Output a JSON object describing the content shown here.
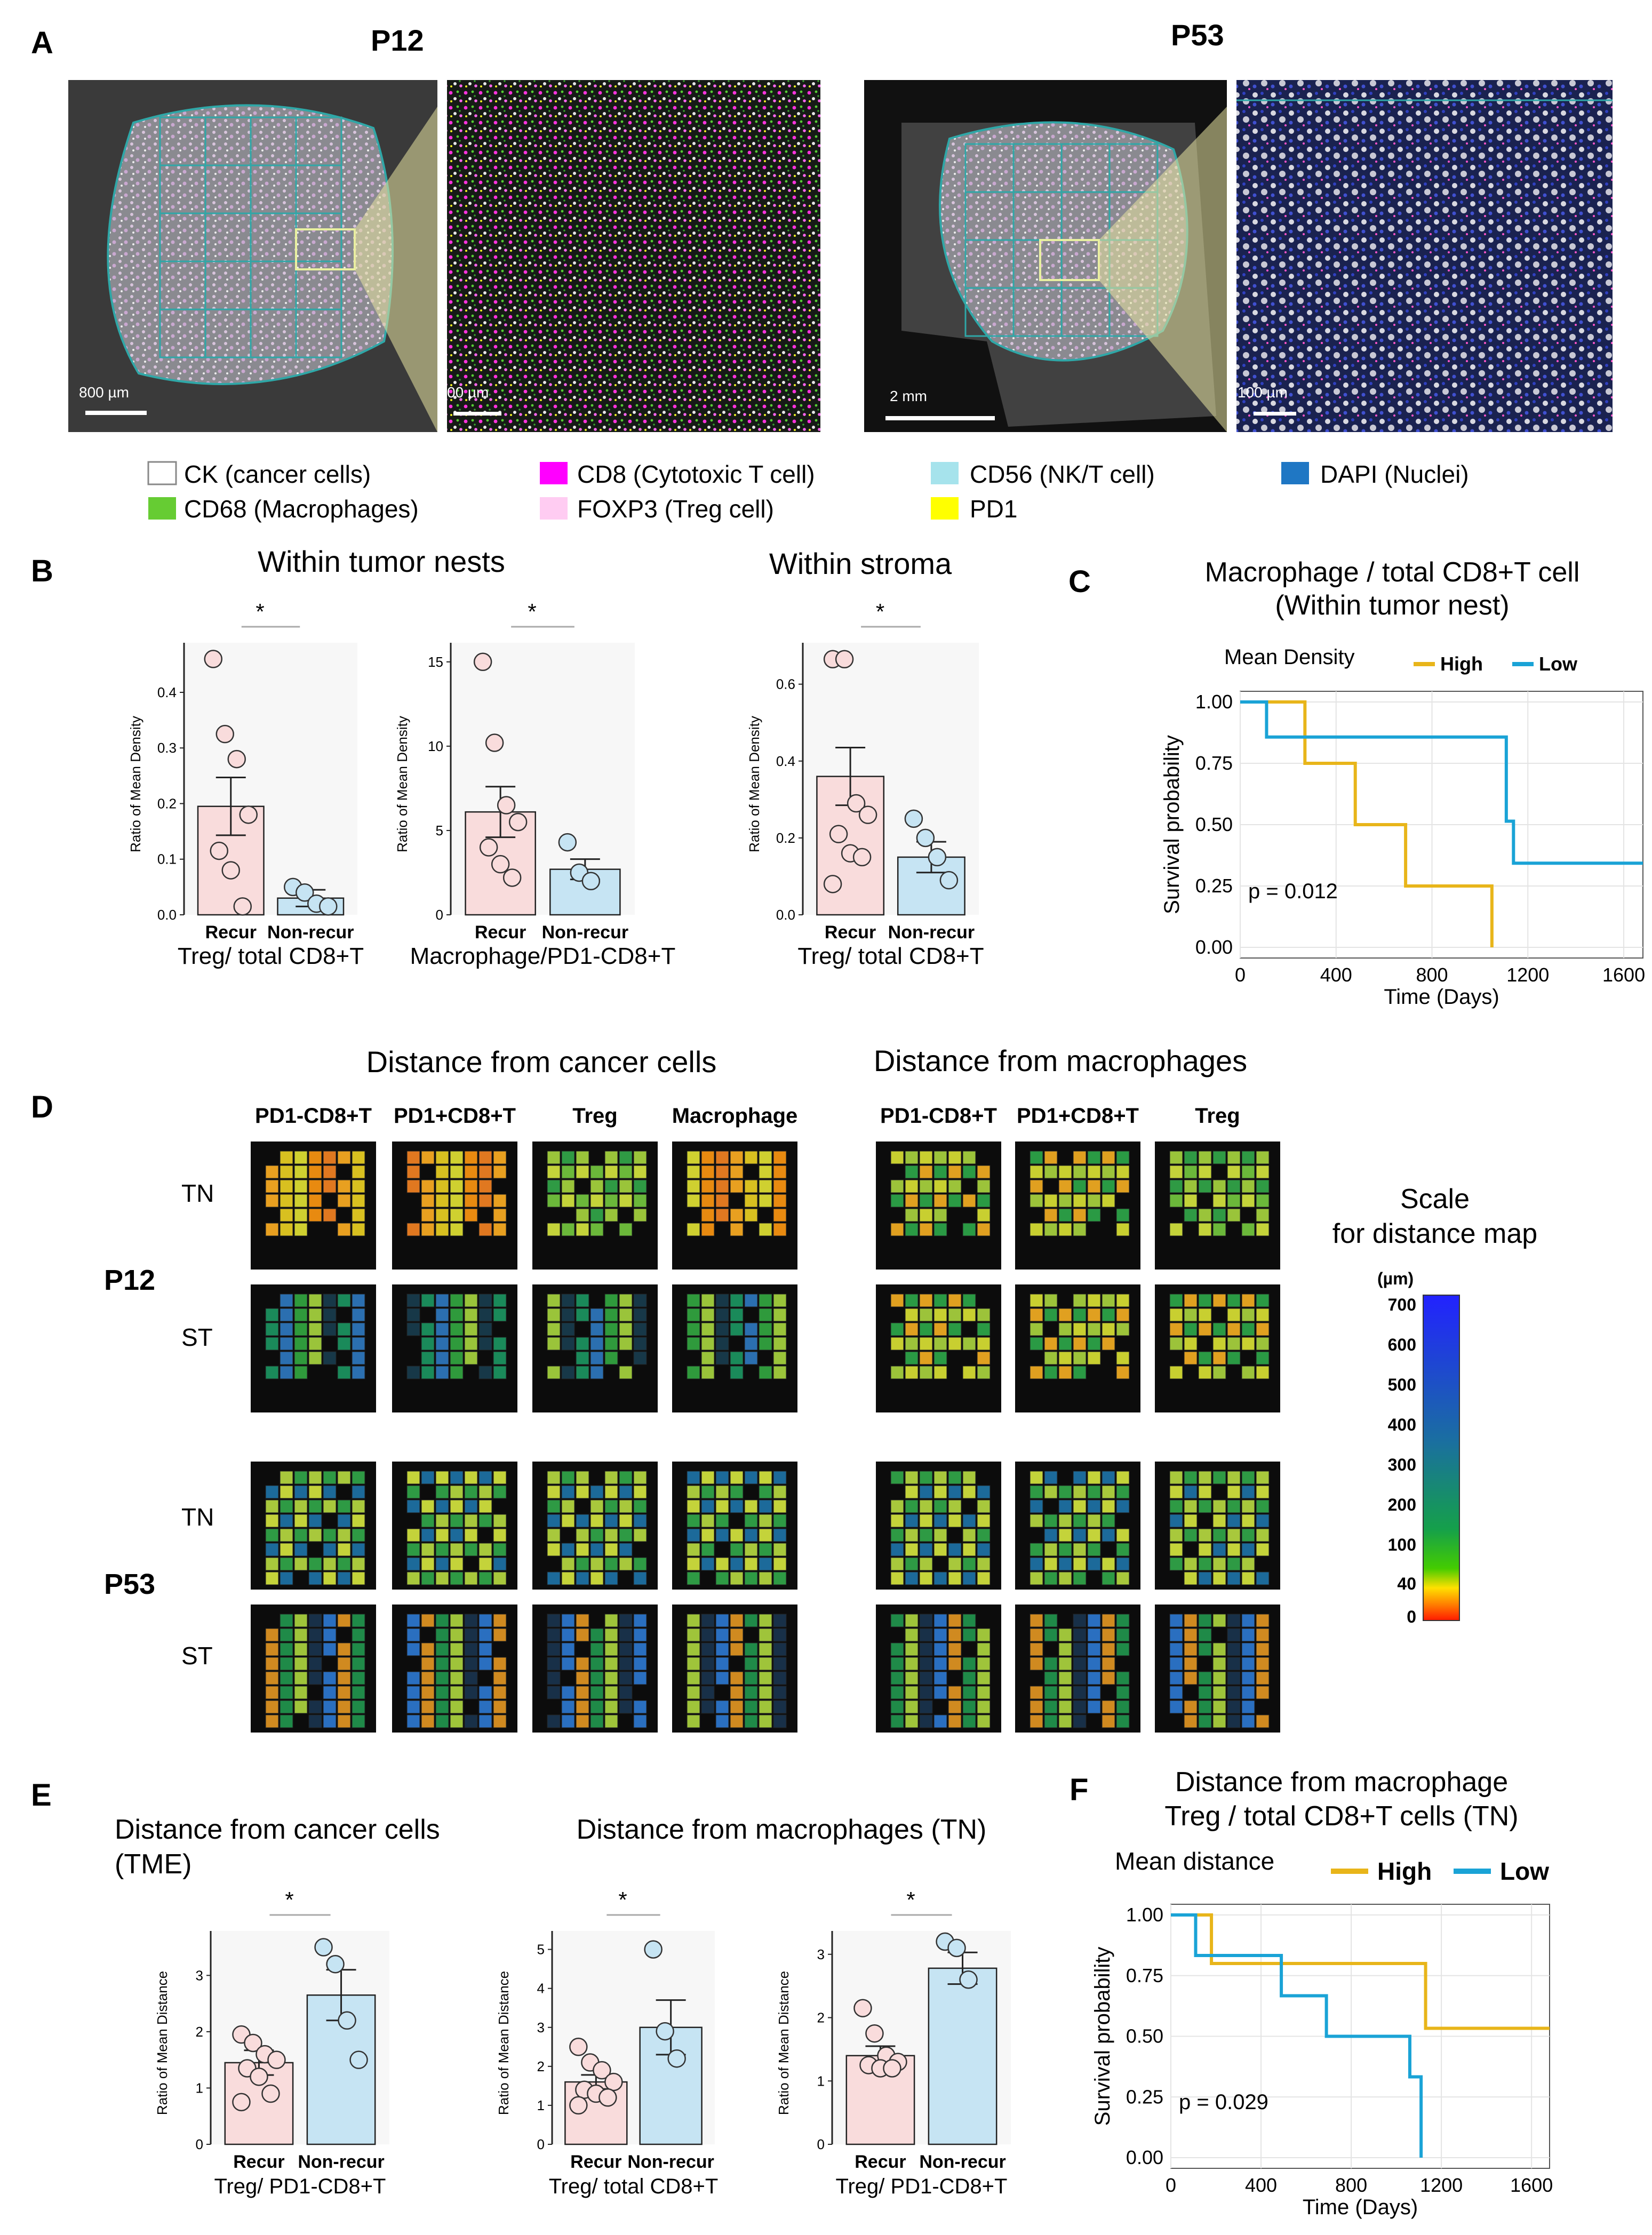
{
  "panel_labels": [
    "A",
    "B",
    "C",
    "D",
    "E",
    "F"
  ],
  "panel_a": {
    "patients": [
      "P12",
      "P53"
    ],
    "scalebars": [
      "800 µm",
      "00 µm",
      "2 mm",
      "100 µm"
    ],
    "legend": [
      {
        "label": "CK (cancer cells)",
        "color": "#ffffff"
      },
      {
        "label": "CD68 (Macrophages)",
        "color": "#66cc33"
      },
      {
        "label": "CD8 (Cytotoxic T cell)",
        "color": "#ff00ff"
      },
      {
        "label": "FOXP3 (Treg cell)",
        "color": "#ffccf2"
      },
      {
        "label": "CD56 (NK/T cell)",
        "color": "#a6e3ec"
      },
      {
        "label": "PD1",
        "color": "#ffff00"
      },
      {
        "label": "DAPI (Nuclei)",
        "color": "#1f77c4"
      }
    ]
  },
  "panel_b": {
    "group_titles": [
      "Within tumor nests",
      "Within stroma"
    ],
    "ylabel": "Ratio of Mean Density",
    "categories": [
      "Recur",
      "Non-recur"
    ],
    "sig": "*"
  },
  "panel_c": {
    "title_line1": "Macrophage / total CD8+T cell",
    "title_line2": "(Within tumor nest)",
    "legend_title": "Mean Density",
    "legend_high": "High",
    "legend_low": "Low",
    "ylabel": "Survival probability",
    "xlabel": "Time (Days)",
    "pvalue": "p = 0.012",
    "xticks": [
      "0",
      "400",
      "800",
      "1200",
      "1600"
    ],
    "yticks": [
      "0.00",
      "0.25",
      "0.50",
      "0.75",
      "1.00"
    ]
  },
  "panel_d": {
    "header_cancer": "Distance from cancer cells",
    "header_macro": "Distance from macrophages",
    "col_cancer": [
      "PD1-CD8+T",
      "PD1+CD8+T",
      "Treg",
      "Macrophage"
    ],
    "col_macro": [
      "PD1-CD8+T",
      "PD1+CD8+T",
      "Treg"
    ],
    "patients": [
      "P12",
      "P53"
    ],
    "rows": [
      "TN",
      "ST"
    ],
    "scale_title_1": "Scale",
    "scale_title_2": "for distance map",
    "scale_unit": "(µm)",
    "scale_ticks": [
      "700",
      "600",
      "500",
      "400",
      "300",
      "200",
      "100",
      "40",
      "0"
    ]
  },
  "panel_e": {
    "title_cancer_1": "Distance from cancer cells",
    "title_cancer_2": "(TME)",
    "title_macro": "Distance from macrophages (TN)",
    "ylabel": "Ratio of Mean Distance",
    "categories": [
      "Recur",
      "Non-recur"
    ],
    "sig": "*"
  },
  "panel_f": {
    "title_line1": "Distance from macrophage",
    "title_line2": "Treg / total CD8+T cells (TN)",
    "legend_title": "Mean distance",
    "legend_high": "High",
    "legend_low": "Low",
    "ylabel": "Survival probability",
    "xlabel": "Time (Days)",
    "pvalue": "p = 0.029",
    "xticks": [
      "0",
      "400",
      "800",
      "1200",
      "1600"
    ],
    "yticks": [
      "0.00",
      "0.25",
      "0.50",
      "0.75",
      "1.00"
    ]
  },
  "chart_data": [
    {
      "id": "B1",
      "type": "bar",
      "title": "",
      "xlabel": "Treg/ total CD8+T",
      "ylabel": "Ratio of Mean Density",
      "categories": [
        "Recur",
        "Non-recur"
      ],
      "values": [
        0.195,
        0.03
      ],
      "errors": [
        0.052,
        0.015
      ],
      "ylim": [
        0,
        0.47
      ],
      "yticks": [
        "0.0",
        "0.1",
        "0.2",
        "0.3",
        "0.4"
      ],
      "points": [
        [
          0.46,
          0.325,
          0.28,
          0.18,
          0.115,
          0.08,
          0.015
        ],
        [
          0.05,
          0.04,
          0.02,
          0.015
        ]
      ]
    },
    {
      "id": "B2",
      "type": "bar",
      "title": "",
      "xlabel": "Macrophage/PD1-CD8+T",
      "ylabel": "Ratio of Mean Density",
      "categories": [
        "Recur",
        "Non-recur"
      ],
      "values": [
        6.1,
        2.7
      ],
      "errors": [
        1.5,
        0.6
      ],
      "ylim": [
        0,
        15.5
      ],
      "yticks": [
        "0",
        "5",
        "10",
        "15"
      ],
      "points": [
        [
          15.0,
          10.2,
          6.5,
          5.5,
          4.0,
          3.0,
          2.2
        ],
        [
          4.3,
          2.5,
          2.0
        ]
      ]
    },
    {
      "id": "B3",
      "type": "bar",
      "title": "",
      "xlabel": "Treg/ total CD8+T",
      "ylabel": "Ratio of Mean Density",
      "categories": [
        "Recur",
        "Non-recur"
      ],
      "values": [
        0.36,
        0.15
      ],
      "errors": [
        0.075,
        0.04
      ],
      "ylim": [
        0,
        0.68
      ],
      "yticks": [
        "0.0",
        "0.2",
        "0.4",
        "0.6"
      ],
      "points": [
        [
          0.665,
          0.665,
          0.29,
          0.26,
          0.21,
          0.16,
          0.15,
          0.08
        ],
        [
          0.25,
          0.2,
          0.15,
          0.09
        ]
      ]
    },
    {
      "id": "C",
      "type": "line",
      "title": "Macrophage / total CD8+T cell (Within tumor nest)",
      "xlabel": "Time (Days)",
      "ylabel": "Survival probability",
      "xlim": [
        0,
        1680
      ],
      "ylim": [
        0,
        1
      ],
      "series": [
        {
          "name": "High",
          "color": "#e8b51a",
          "x": [
            0,
            270,
            270,
            480,
            480,
            690,
            690,
            1050,
            1050
          ],
          "y": [
            1,
            1,
            0.75,
            0.75,
            0.5,
            0.5,
            0.25,
            0.25,
            0
          ]
        },
        {
          "name": "Low",
          "color": "#1aa3d6",
          "x": [
            0,
            110,
            110,
            1110,
            1110,
            1140,
            1140,
            1680
          ],
          "y": [
            1,
            1,
            0.857,
            0.857,
            0.514,
            0.514,
            0.343,
            0.343
          ]
        }
      ]
    },
    {
      "id": "E1",
      "type": "bar",
      "title": "",
      "xlabel": "Treg/ PD1-CD8+T",
      "ylabel": "Ratio of Mean Distance",
      "categories": [
        "Recur",
        "Non-recur"
      ],
      "values": [
        1.45,
        2.65
      ],
      "errors": [
        0.22,
        0.45
      ],
      "ylim": [
        0,
        3.6
      ],
      "yticks": [
        "0",
        "1",
        "2",
        "3"
      ],
      "points": [
        [
          1.95,
          1.8,
          1.6,
          1.5,
          1.35,
          1.2,
          0.9,
          0.75
        ],
        [
          3.5,
          3.2,
          2.2,
          1.5
        ]
      ]
    },
    {
      "id": "E2",
      "type": "bar",
      "title": "",
      "xlabel": "Treg/ total CD8+T",
      "ylabel": "Ratio of Mean Distance",
      "categories": [
        "Recur",
        "Non-recur"
      ],
      "values": [
        1.6,
        3.0
      ],
      "errors": [
        0.18,
        0.7
      ],
      "ylim": [
        0,
        5.2
      ],
      "yticks": [
        "0",
        "1",
        "2",
        "3",
        "4",
        "5"
      ],
      "points": [
        [
          2.5,
          2.1,
          1.9,
          1.6,
          1.4,
          1.3,
          1.2,
          1.0
        ],
        [
          5.0,
          2.9,
          2.2
        ]
      ]
    },
    {
      "id": "E3",
      "type": "bar",
      "title": "",
      "xlabel": "Treg/ PD1-CD8+T",
      "ylabel": "Ratio of Mean Distance",
      "categories": [
        "Recur",
        "Non-recur"
      ],
      "values": [
        1.4,
        2.78
      ],
      "errors": [
        0.15,
        0.25
      ],
      "ylim": [
        0,
        3.2
      ],
      "yticks": [
        "0",
        "1",
        "2",
        "3"
      ],
      "points": [
        [
          2.15,
          1.75,
          1.4,
          1.3,
          1.25,
          1.2,
          1.2
        ],
        [
          3.2,
          3.1,
          2.6
        ]
      ]
    },
    {
      "id": "F",
      "type": "line",
      "title": "Distance from macrophage Treg / total CD8+T cells (TN)",
      "xlabel": "Time (Days)",
      "ylabel": "Survival probability",
      "xlim": [
        0,
        1680
      ],
      "ylim": [
        0,
        1
      ],
      "series": [
        {
          "name": "High",
          "color": "#e8b51a",
          "x": [
            0,
            180,
            180,
            1130,
            1130,
            1680
          ],
          "y": [
            1,
            1,
            0.8,
            0.8,
            0.533,
            0.533
          ]
        },
        {
          "name": "Low",
          "color": "#1aa3d6",
          "x": [
            0,
            110,
            110,
            490,
            490,
            690,
            690,
            1060,
            1060,
            1110,
            1110
          ],
          "y": [
            1,
            1,
            0.833,
            0.833,
            0.667,
            0.667,
            0.5,
            0.5,
            0.333,
            0.333,
            0
          ]
        }
      ]
    }
  ]
}
